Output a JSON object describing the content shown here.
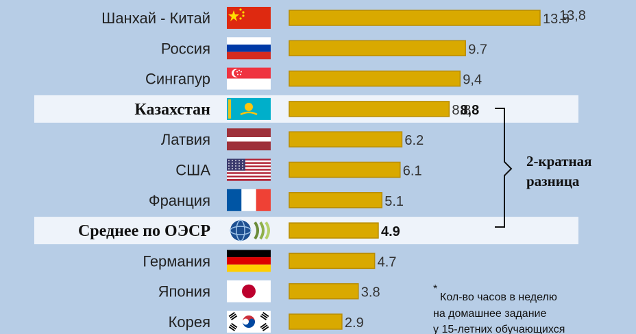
{
  "chart_data": {
    "type": "bar",
    "orientation": "horizontal",
    "categories": [
      "Шанхай - Китай",
      "Россия",
      "Сингапур",
      "Казахстан",
      "Латвия",
      "США",
      "Франция",
      "Среднее по ОЭСР",
      "Германия",
      "Япония",
      "Корея"
    ],
    "values": [
      13.8,
      9.7,
      9.4,
      8.8,
      6.2,
      6.1,
      5.1,
      4.9,
      4.7,
      3.8,
      2.9
    ],
    "value_labels": [
      "13.8",
      "9.7",
      "9,4",
      "8.8",
      "6.2",
      "6.1",
      "5.1",
      "4.9",
      "4.7",
      "3.8",
      "2.9"
    ],
    "overlay_labels": {
      "0": "13,8",
      "3": "8,8"
    },
    "highlighted": [
      "Казахстан",
      "Среднее по ОЭСР"
    ],
    "flags": [
      "china-flag",
      "russia-flag",
      "singapore-flag",
      "kazakhstan-flag",
      "latvia-flag",
      "usa-flag",
      "france-flag",
      "oecd-logo",
      "germany-flag",
      "japan-flag",
      "korea-flag"
    ],
    "xlim": [
      0,
      14.5
    ],
    "bar_color": "#d9a900",
    "brace_label": [
      "2-кратная",
      "разница"
    ],
    "note": [
      "Кол-во часов в неделю",
      "на домашнее задание",
      "у 15-летних обучающихся"
    ],
    "note_marker": "*"
  }
}
